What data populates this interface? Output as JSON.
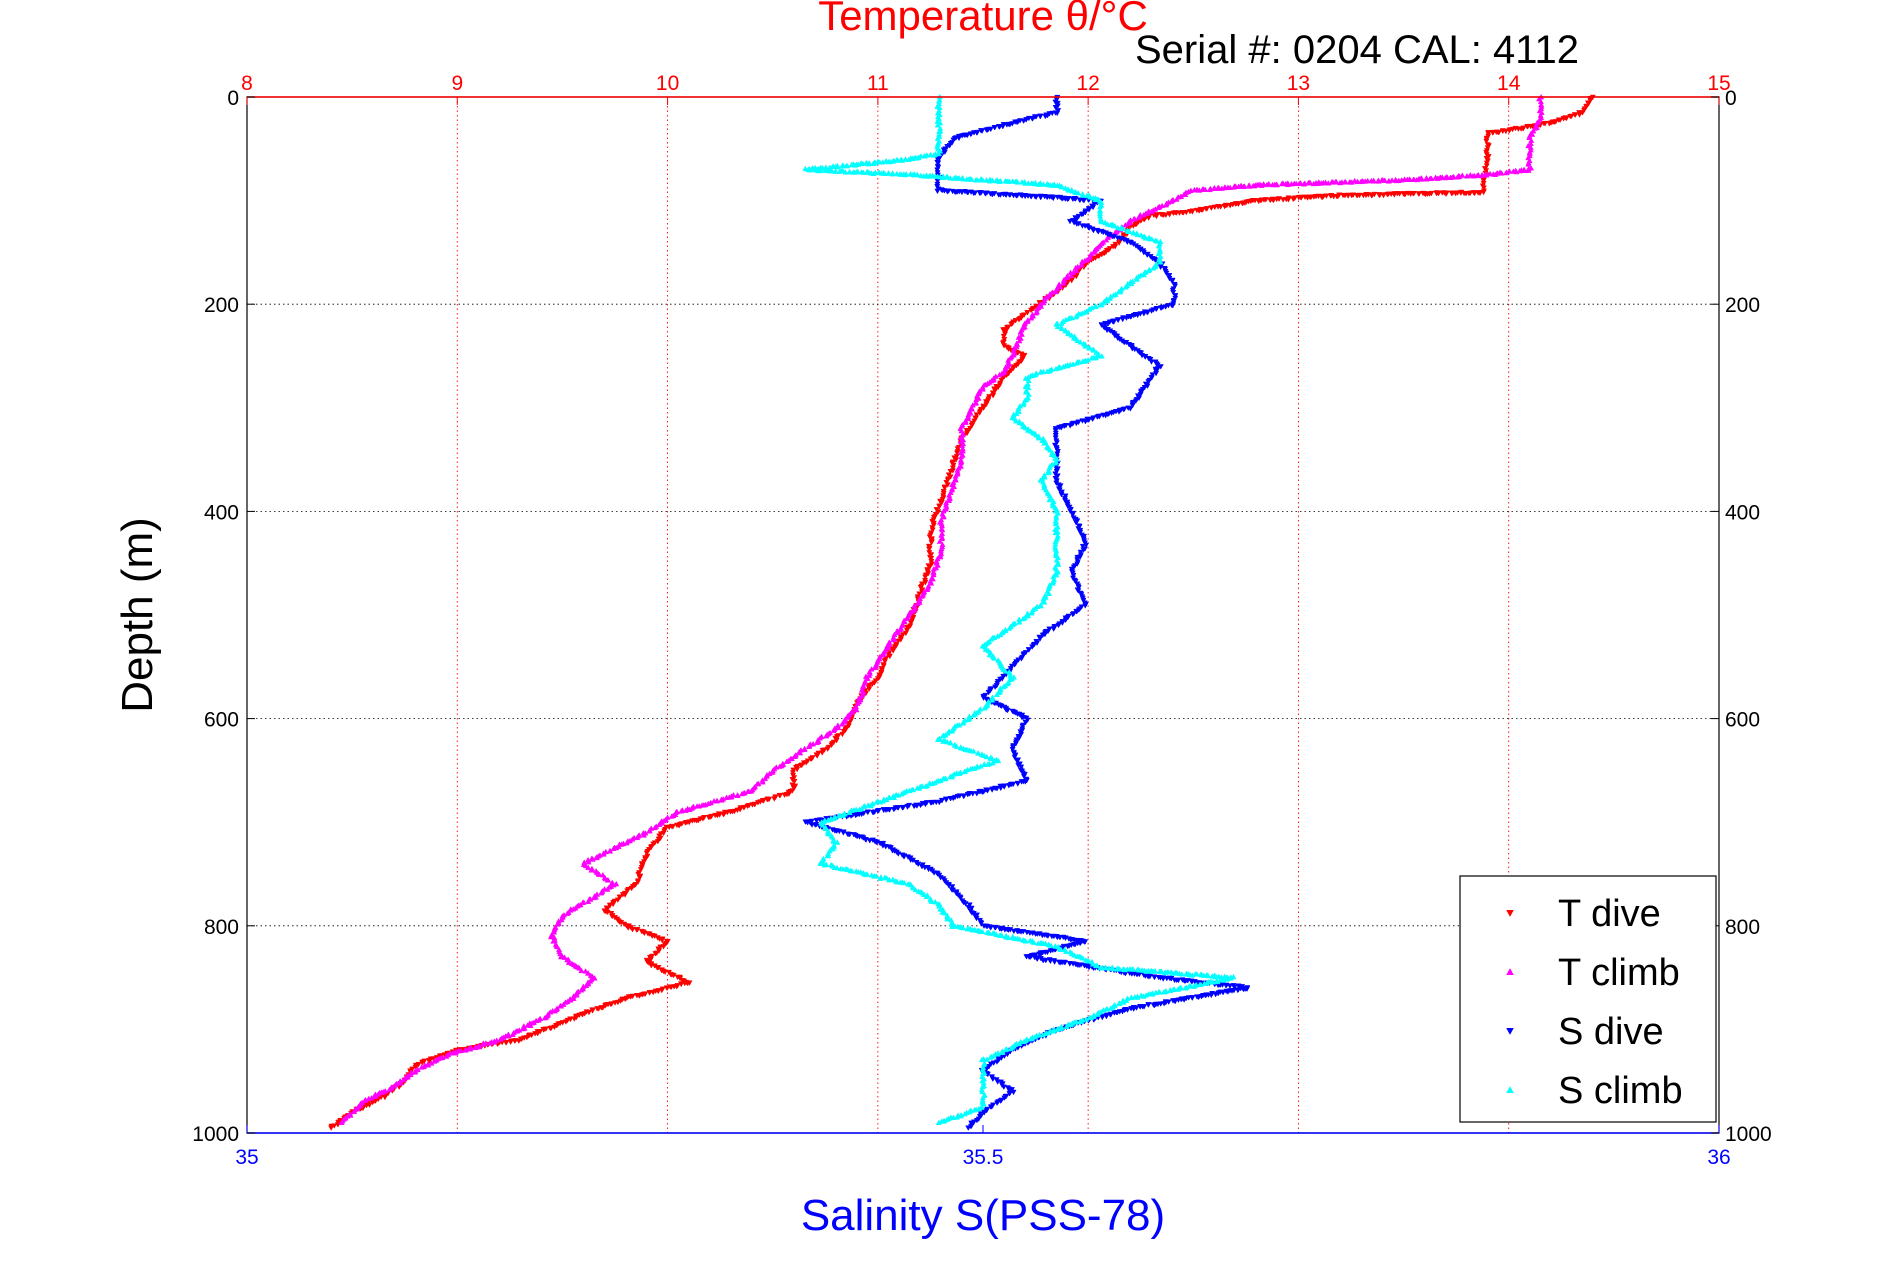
{
  "chart_data": {
    "type": "scatter",
    "title": "Temperature θ/°C",
    "subtitle": "Serial #: 0204  CAL: 4112",
    "ylabel": "Depth (m)",
    "xlabel": "Salinity S(PSS-78)",
    "depth_axis": {
      "range": [
        0,
        1000
      ],
      "reversed": true,
      "ticks": [
        0,
        200,
        400,
        600,
        800,
        1000
      ]
    },
    "temperature_axis": {
      "range": [
        8,
        15
      ],
      "ticks": [
        8,
        9,
        10,
        11,
        12,
        13,
        14,
        15
      ],
      "color": "#ff0000"
    },
    "salinity_axis": {
      "range": [
        35,
        36
      ],
      "ticks": [
        35,
        35.5,
        36
      ],
      "tick_labels": [
        "35",
        "35.5",
        "36"
      ],
      "color": "#0000ff"
    },
    "grid": true,
    "legend": {
      "placement": "bottom-right"
    },
    "series": [
      {
        "name": "T dive",
        "axis": "temperature",
        "color": "#ff0000",
        "marker": "triangle-down",
        "points": [
          [
            14.4,
            0
          ],
          [
            14.35,
            15
          ],
          [
            14.2,
            25
          ],
          [
            14.0,
            32
          ],
          [
            13.9,
            35
          ],
          [
            13.9,
            60
          ],
          [
            13.88,
            92
          ],
          [
            13.2,
            95
          ],
          [
            12.8,
            100
          ],
          [
            12.5,
            110
          ],
          [
            12.3,
            115
          ],
          [
            12.2,
            125
          ],
          [
            12.15,
            140
          ],
          [
            12.0,
            160
          ],
          [
            11.9,
            180
          ],
          [
            11.8,
            195
          ],
          [
            11.7,
            210
          ],
          [
            11.6,
            225
          ],
          [
            11.6,
            240
          ],
          [
            11.7,
            250
          ],
          [
            11.6,
            270
          ],
          [
            11.5,
            300
          ],
          [
            11.4,
            330
          ],
          [
            11.35,
            360
          ],
          [
            11.3,
            390
          ],
          [
            11.25,
            420
          ],
          [
            11.25,
            450
          ],
          [
            11.2,
            480
          ],
          [
            11.15,
            510
          ],
          [
            11.05,
            540
          ],
          [
            11.0,
            560
          ],
          [
            10.9,
            585
          ],
          [
            10.85,
            610
          ],
          [
            10.75,
            630
          ],
          [
            10.6,
            650
          ],
          [
            10.6,
            670
          ],
          [
            10.3,
            690
          ],
          [
            10.0,
            705
          ],
          [
            9.9,
            730
          ],
          [
            9.85,
            760
          ],
          [
            9.7,
            785
          ],
          [
            9.8,
            800
          ],
          [
            10.0,
            815
          ],
          [
            9.9,
            835
          ],
          [
            10.1,
            855
          ],
          [
            9.8,
            870
          ],
          [
            9.6,
            885
          ],
          [
            9.3,
            910
          ],
          [
            9.0,
            920
          ],
          [
            8.8,
            935
          ],
          [
            8.75,
            950
          ],
          [
            8.65,
            965
          ],
          [
            8.5,
            980
          ],
          [
            8.4,
            995
          ]
        ]
      },
      {
        "name": "T climb",
        "axis": "temperature",
        "color": "#ff00ff",
        "marker": "triangle-up",
        "points": [
          [
            14.15,
            0
          ],
          [
            14.15,
            20
          ],
          [
            14.1,
            40
          ],
          [
            14.1,
            70
          ],
          [
            13.9,
            75
          ],
          [
            13.5,
            80
          ],
          [
            12.8,
            85
          ],
          [
            12.5,
            90
          ],
          [
            12.4,
            100
          ],
          [
            12.3,
            110
          ],
          [
            12.2,
            120
          ],
          [
            12.1,
            135
          ],
          [
            12.0,
            155
          ],
          [
            11.9,
            175
          ],
          [
            11.8,
            195
          ],
          [
            11.7,
            220
          ],
          [
            11.65,
            245
          ],
          [
            11.6,
            265
          ],
          [
            11.5,
            280
          ],
          [
            11.45,
            300
          ],
          [
            11.4,
            320
          ],
          [
            11.4,
            350
          ],
          [
            11.35,
            380
          ],
          [
            11.3,
            410
          ],
          [
            11.3,
            440
          ],
          [
            11.25,
            470
          ],
          [
            11.15,
            500
          ],
          [
            11.05,
            530
          ],
          [
            10.95,
            560
          ],
          [
            10.9,
            590
          ],
          [
            10.8,
            610
          ],
          [
            10.65,
            630
          ],
          [
            10.5,
            650
          ],
          [
            10.4,
            670
          ],
          [
            10.05,
            690
          ],
          [
            9.9,
            710
          ],
          [
            9.6,
            740
          ],
          [
            9.75,
            760
          ],
          [
            9.5,
            790
          ],
          [
            9.45,
            810
          ],
          [
            9.5,
            830
          ],
          [
            9.65,
            850
          ],
          [
            9.55,
            870
          ],
          [
            9.4,
            890
          ],
          [
            9.2,
            910
          ],
          [
            8.95,
            925
          ],
          [
            8.8,
            940
          ],
          [
            8.7,
            955
          ],
          [
            8.55,
            970
          ],
          [
            8.45,
            990
          ]
        ]
      },
      {
        "name": "S dive",
        "axis": "salinity",
        "color": "#0000ff",
        "marker": "triangle-down",
        "points": [
          [
            35.55,
            0
          ],
          [
            35.55,
            15
          ],
          [
            35.52,
            25
          ],
          [
            35.48,
            40
          ],
          [
            35.47,
            60
          ],
          [
            35.47,
            90
          ],
          [
            35.58,
            100
          ],
          [
            35.56,
            120
          ],
          [
            35.6,
            140
          ],
          [
            35.62,
            160
          ],
          [
            35.63,
            180
          ],
          [
            35.63,
            200
          ],
          [
            35.58,
            220
          ],
          [
            35.6,
            240
          ],
          [
            35.62,
            260
          ],
          [
            35.61,
            280
          ],
          [
            35.6,
            300
          ],
          [
            35.55,
            320
          ],
          [
            35.55,
            340
          ],
          [
            35.55,
            370
          ],
          [
            35.56,
            400
          ],
          [
            35.57,
            430
          ],
          [
            35.56,
            460
          ],
          [
            35.57,
            490
          ],
          [
            35.54,
            520
          ],
          [
            35.52,
            550
          ],
          [
            35.5,
            580
          ],
          [
            35.53,
            600
          ],
          [
            35.52,
            630
          ],
          [
            35.53,
            660
          ],
          [
            35.47,
            680
          ],
          [
            35.38,
            700
          ],
          [
            35.43,
            720
          ],
          [
            35.47,
            750
          ],
          [
            35.49,
            780
          ],
          [
            35.5,
            800
          ],
          [
            35.57,
            815
          ],
          [
            35.53,
            830
          ],
          [
            35.62,
            850
          ],
          [
            35.68,
            860
          ],
          [
            35.6,
            880
          ],
          [
            35.55,
            900
          ],
          [
            35.52,
            920
          ],
          [
            35.5,
            940
          ],
          [
            35.52,
            960
          ],
          [
            35.5,
            980
          ],
          [
            35.49,
            995
          ]
        ]
      },
      {
        "name": "S climb",
        "axis": "salinity",
        "color": "#00ffff",
        "marker": "triangle-up",
        "points": [
          [
            35.47,
            0
          ],
          [
            35.47,
            30
          ],
          [
            35.47,
            55
          ],
          [
            35.45,
            60
          ],
          [
            35.38,
            70
          ],
          [
            35.45,
            75
          ],
          [
            35.55,
            85
          ],
          [
            35.58,
            100
          ],
          [
            35.58,
            120
          ],
          [
            35.62,
            140
          ],
          [
            35.62,
            160
          ],
          [
            35.6,
            180
          ],
          [
            35.58,
            200
          ],
          [
            35.55,
            220
          ],
          [
            35.57,
            240
          ],
          [
            35.58,
            250
          ],
          [
            35.53,
            270
          ],
          [
            35.53,
            290
          ],
          [
            35.52,
            310
          ],
          [
            35.54,
            330
          ],
          [
            35.55,
            350
          ],
          [
            35.54,
            370
          ],
          [
            35.55,
            400
          ],
          [
            35.55,
            430
          ],
          [
            35.55,
            460
          ],
          [
            35.54,
            490
          ],
          [
            35.52,
            510
          ],
          [
            35.5,
            530
          ],
          [
            35.52,
            560
          ],
          [
            35.5,
            590
          ],
          [
            35.47,
            620
          ],
          [
            35.51,
            640
          ],
          [
            35.47,
            660
          ],
          [
            35.43,
            680
          ],
          [
            35.39,
            700
          ],
          [
            35.4,
            720
          ],
          [
            35.39,
            740
          ],
          [
            35.45,
            760
          ],
          [
            35.47,
            780
          ],
          [
            35.48,
            800
          ],
          [
            35.55,
            820
          ],
          [
            35.58,
            840
          ],
          [
            35.67,
            850
          ],
          [
            35.6,
            870
          ],
          [
            35.57,
            890
          ],
          [
            35.53,
            910
          ],
          [
            35.5,
            930
          ],
          [
            35.5,
            950
          ],
          [
            35.5,
            975
          ],
          [
            35.47,
            990
          ]
        ]
      }
    ]
  }
}
